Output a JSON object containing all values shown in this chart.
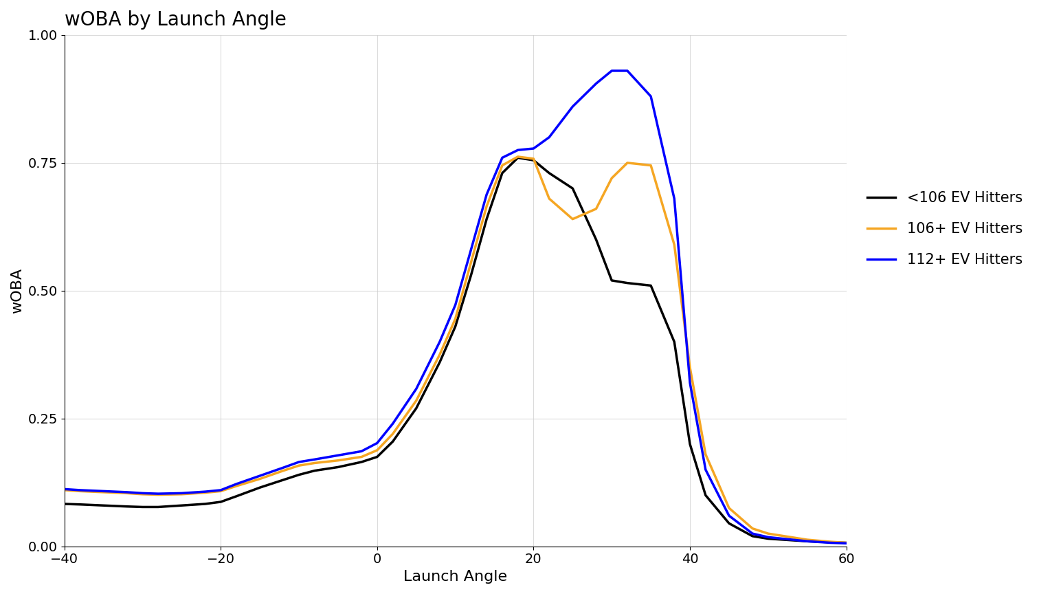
{
  "title": "wOBA by Launch Angle",
  "xlabel": "Launch Angle",
  "ylabel": "wOBA",
  "xlim": [
    -40,
    60
  ],
  "ylim": [
    0.0,
    1.0
  ],
  "xticks": [
    -40,
    -20,
    0,
    20,
    40,
    60
  ],
  "yticks": [
    0.0,
    0.25,
    0.5,
    0.75,
    1.0
  ],
  "background_color": "#ffffff",
  "grid_color": "#cccccc",
  "series": [
    {
      "label": "<106 EV Hitters",
      "color": "#000000",
      "linewidth": 2.5,
      "x": [
        -40,
        -38,
        -35,
        -32,
        -30,
        -28,
        -25,
        -22,
        -20,
        -18,
        -15,
        -12,
        -10,
        -8,
        -5,
        -2,
        0,
        2,
        5,
        8,
        10,
        12,
        14,
        16,
        18,
        20,
        22,
        25,
        28,
        30,
        32,
        35,
        38,
        40,
        42,
        45,
        48,
        50,
        55,
        58,
        60
      ],
      "y": [
        0.083,
        0.082,
        0.08,
        0.078,
        0.077,
        0.077,
        0.08,
        0.083,
        0.087,
        0.098,
        0.115,
        0.13,
        0.14,
        0.148,
        0.155,
        0.165,
        0.175,
        0.205,
        0.27,
        0.36,
        0.43,
        0.53,
        0.64,
        0.73,
        0.76,
        0.755,
        0.73,
        0.7,
        0.6,
        0.52,
        0.515,
        0.51,
        0.4,
        0.2,
        0.1,
        0.045,
        0.02,
        0.015,
        0.01,
        0.008,
        0.007
      ]
    },
    {
      "label": "106+ EV Hitters",
      "color": "#f5a623",
      "linewidth": 2.5,
      "x": [
        -40,
        -38,
        -35,
        -32,
        -30,
        -28,
        -25,
        -22,
        -20,
        -18,
        -15,
        -12,
        -10,
        -8,
        -5,
        -2,
        0,
        2,
        5,
        8,
        10,
        12,
        14,
        16,
        18,
        20,
        22,
        25,
        28,
        30,
        32,
        35,
        38,
        40,
        42,
        45,
        48,
        50,
        55,
        58,
        60
      ],
      "y": [
        0.11,
        0.108,
        0.106,
        0.104,
        0.102,
        0.101,
        0.102,
        0.105,
        0.108,
        0.118,
        0.132,
        0.148,
        0.158,
        0.163,
        0.168,
        0.175,
        0.188,
        0.22,
        0.285,
        0.375,
        0.445,
        0.555,
        0.665,
        0.745,
        0.762,
        0.758,
        0.68,
        0.64,
        0.66,
        0.72,
        0.75,
        0.745,
        0.59,
        0.35,
        0.18,
        0.075,
        0.035,
        0.025,
        0.013,
        0.009,
        0.007
      ]
    },
    {
      "label": "112+ EV Hitters",
      "color": "#0000ff",
      "linewidth": 2.5,
      "x": [
        -40,
        -38,
        -35,
        -32,
        -30,
        -28,
        -25,
        -22,
        -20,
        -18,
        -15,
        -12,
        -10,
        -8,
        -5,
        -2,
        0,
        2,
        5,
        8,
        10,
        12,
        14,
        16,
        18,
        20,
        22,
        25,
        28,
        30,
        32,
        35,
        38,
        40,
        42,
        45,
        48,
        50,
        55,
        58,
        60
      ],
      "y": [
        0.112,
        0.11,
        0.108,
        0.106,
        0.104,
        0.103,
        0.104,
        0.107,
        0.11,
        0.122,
        0.138,
        0.154,
        0.165,
        0.17,
        0.178,
        0.186,
        0.202,
        0.24,
        0.308,
        0.4,
        0.472,
        0.58,
        0.688,
        0.76,
        0.775,
        0.778,
        0.8,
        0.86,
        0.905,
        0.93,
        0.93,
        0.88,
        0.68,
        0.32,
        0.15,
        0.06,
        0.025,
        0.018,
        0.01,
        0.007,
        0.006
      ]
    }
  ],
  "legend_fontsize": 15,
  "title_fontsize": 20,
  "axis_label_fontsize": 16,
  "tick_fontsize": 14
}
